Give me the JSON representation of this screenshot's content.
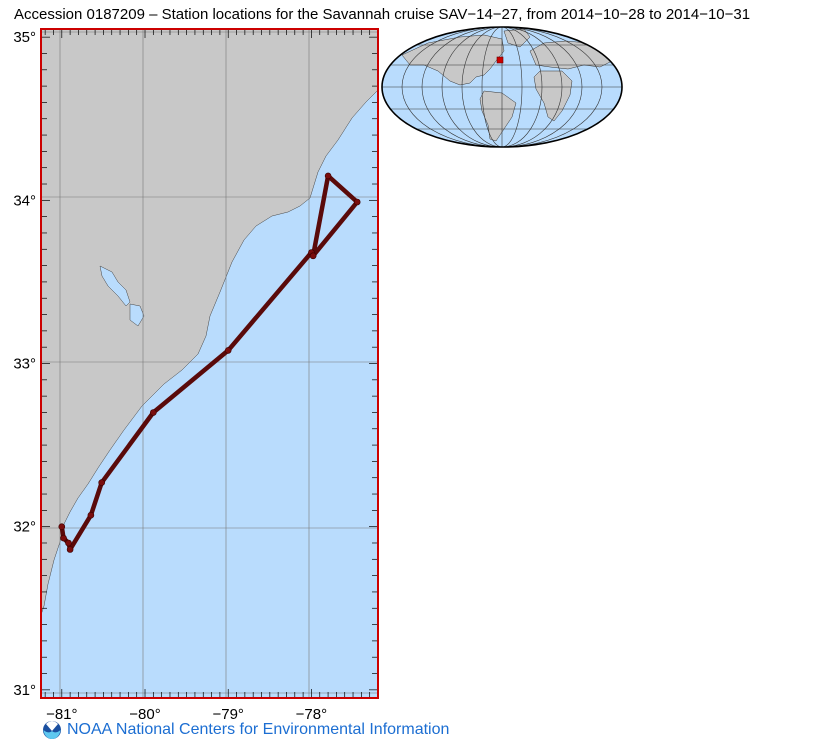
{
  "title": "Accession 0187209 – Station locations for the Savannah cruise SAV−14−27, from 2014−10−28 to 2014−10−31",
  "footer": {
    "logo_icon": "noaa-logo-icon",
    "text": "NOAA National Centers for Environmental Information"
  },
  "colors": {
    "land": "#c8c8c8",
    "ocean": "#b9dcfd",
    "track": "#5a0a0a",
    "frame": "#cc0000",
    "footer_text": "#1c6ed2"
  },
  "map": {
    "lon_range": [
      -81.25,
      -77.2
    ],
    "lat_range": [
      30.95,
      35.05
    ],
    "lon_ticks": [
      {
        "value": -81,
        "label": "−81°"
      },
      {
        "value": -80,
        "label": "−80°"
      },
      {
        "value": -79,
        "label": "−79°"
      },
      {
        "value": -78,
        "label": "−78°"
      }
    ],
    "lat_ticks": [
      {
        "value": 35,
        "label": "35°"
      },
      {
        "value": 34,
        "label": "34°"
      },
      {
        "value": 33,
        "label": "33°"
      },
      {
        "value": 32,
        "label": "32°"
      },
      {
        "value": 31,
        "label": "31°"
      }
    ],
    "track": [
      [
        -81.0,
        32.0
      ],
      [
        -80.98,
        31.93
      ],
      [
        -80.92,
        31.9
      ],
      [
        -80.9,
        31.86
      ],
      [
        -80.65,
        32.07
      ],
      [
        -80.52,
        32.27
      ],
      [
        -79.9,
        32.7
      ],
      [
        -79.0,
        33.08
      ],
      [
        -78.0,
        33.68
      ],
      [
        -77.98,
        33.66
      ],
      [
        -77.8,
        34.15
      ],
      [
        -77.45,
        33.99
      ],
      [
        -77.98,
        33.66
      ]
    ]
  },
  "inset": {
    "highlight_marker": "station-area-marker"
  }
}
